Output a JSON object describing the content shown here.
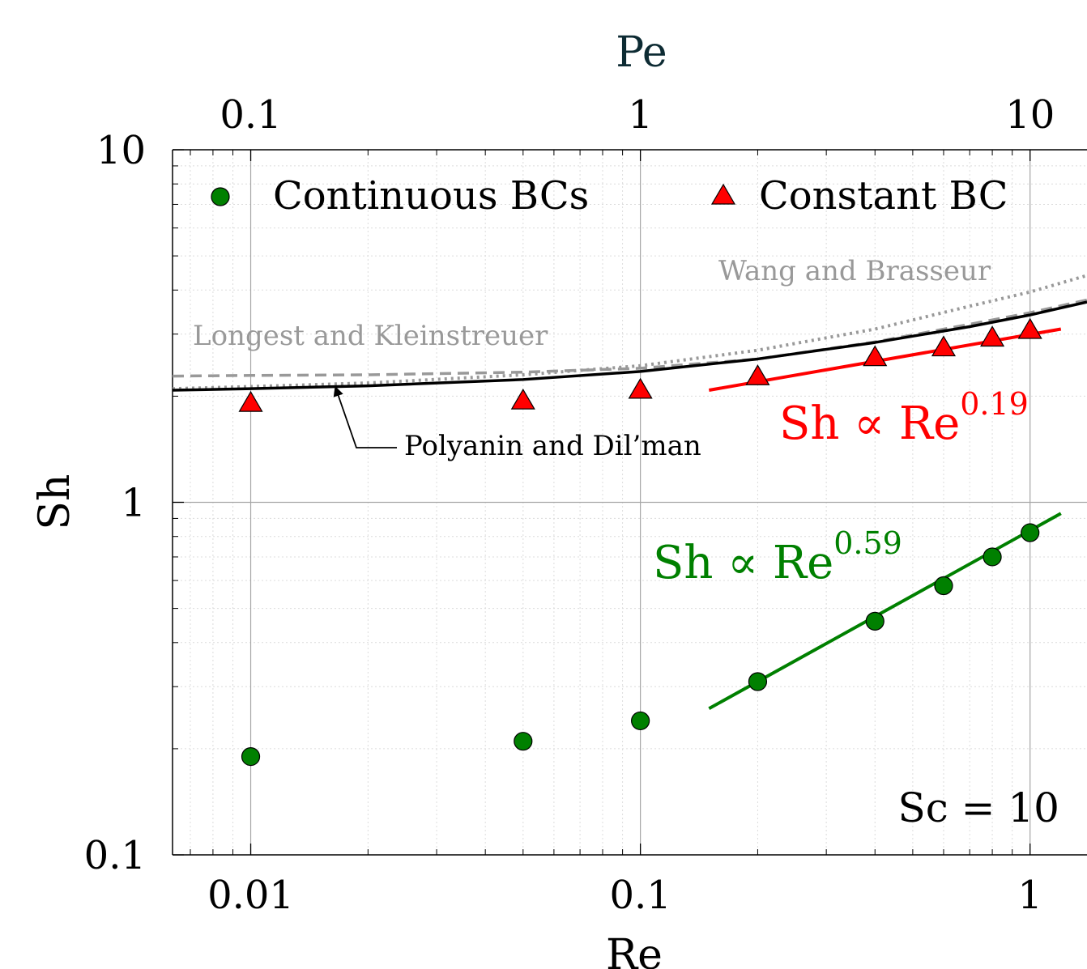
{
  "chart_data": {
    "type": "scatter",
    "xlabel": "Re",
    "x2label": "Pe",
    "ylabel": "Sh",
    "xscale": "log",
    "yscale": "log",
    "xlim": [
      0.0063,
      1.4
    ],
    "ylim": [
      0.1,
      10
    ],
    "x2lim": [
      0.063,
      14
    ],
    "x_ticks": [
      {
        "value": 0.01,
        "label": "0.01"
      },
      {
        "value": 0.1,
        "label": "0.1"
      },
      {
        "value": 1,
        "label": "1"
      }
    ],
    "x2_ticks": [
      {
        "value": 0.1,
        "label": "0.1"
      },
      {
        "value": 1,
        "label": "1"
      },
      {
        "value": 10,
        "label": "10"
      }
    ],
    "y_ticks": [
      {
        "value": 0.1,
        "label": "0.1"
      },
      {
        "value": 1,
        "label": "1"
      },
      {
        "value": 10,
        "label": "10"
      }
    ],
    "grid": true,
    "legend_position": "top",
    "colors": {
      "continuous": "#008000",
      "constant": "#ff0000",
      "polyanin": "#000000",
      "reference_curves": "#999999",
      "axis_title_pe": "#0d2b33"
    },
    "series": [
      {
        "name": "Continuous BCs",
        "marker": "circle",
        "x": [
          0.01,
          0.05,
          0.1,
          0.2,
          0.4,
          0.6,
          0.8,
          1.0
        ],
        "y": [
          0.19,
          0.21,
          0.24,
          0.31,
          0.46,
          0.58,
          0.7,
          0.82
        ]
      },
      {
        "name": "Constant BC",
        "marker": "triangle",
        "x": [
          0.01,
          0.05,
          0.1,
          0.2,
          0.4,
          0.6,
          0.8,
          1.0
        ],
        "y": [
          1.9,
          1.93,
          2.07,
          2.26,
          2.56,
          2.73,
          2.91,
          3.06
        ]
      }
    ],
    "fits": [
      {
        "label_main": "Sh ∝ Re",
        "label_exp": "0.59",
        "x": [
          0.15,
          1.2
        ],
        "y": [
          0.26,
          0.93
        ]
      },
      {
        "label_main": "Sh ∝ Re",
        "label_exp": "0.19",
        "x": [
          0.15,
          1.2
        ],
        "y": [
          2.08,
          3.1
        ]
      }
    ],
    "curves": [
      {
        "label": "Polyanin and Dil’man",
        "style": "solid",
        "x": [
          0.0063,
          0.01,
          0.02,
          0.05,
          0.1,
          0.2,
          0.4,
          0.7,
          1.0,
          1.4
        ],
        "y": [
          2.08,
          2.1,
          2.14,
          2.23,
          2.35,
          2.55,
          2.84,
          3.15,
          3.4,
          3.7
        ]
      },
      {
        "label": "Longest and Kleinstreuer",
        "style": "dashed",
        "x": [
          0.0063,
          0.01,
          0.02,
          0.05,
          0.1,
          0.2,
          0.4,
          0.7,
          1.0,
          1.4
        ],
        "y": [
          2.28,
          2.29,
          2.3,
          2.34,
          2.4,
          2.55,
          2.85,
          3.2,
          3.45,
          3.75
        ]
      },
      {
        "label": "Wang and Brasseur",
        "style": "dotted",
        "x": [
          0.0063,
          0.01,
          0.02,
          0.05,
          0.1,
          0.2,
          0.4,
          0.7,
          1.0,
          1.4
        ],
        "y": [
          2.1,
          2.13,
          2.18,
          2.3,
          2.44,
          2.7,
          3.1,
          3.6,
          3.95,
          4.4
        ]
      }
    ],
    "annotations": [
      {
        "text": "Sc = 10"
      }
    ]
  }
}
